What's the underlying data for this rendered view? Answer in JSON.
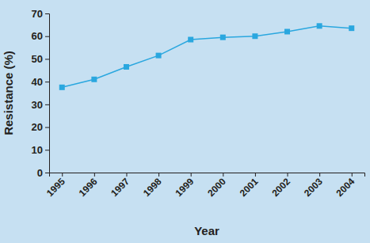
{
  "chart_data": {
    "type": "line",
    "x_label": "Year",
    "y_label": "Resistance (%)",
    "categories": [
      "1995",
      "1996",
      "1997",
      "1998",
      "1999",
      "2000",
      "2001",
      "2002",
      "2003",
      "2004"
    ],
    "values": [
      37.5,
      41,
      46.5,
      51.5,
      58.5,
      59.5,
      60,
      62,
      64.5,
      63.5
    ],
    "color": "#2aa7df",
    "marker": "square",
    "line_style": "solid",
    "ylim": [
      0,
      70
    ],
    "yticks": [
      0,
      10,
      20,
      30,
      40,
      50,
      60,
      70
    ],
    "grid": false
  }
}
